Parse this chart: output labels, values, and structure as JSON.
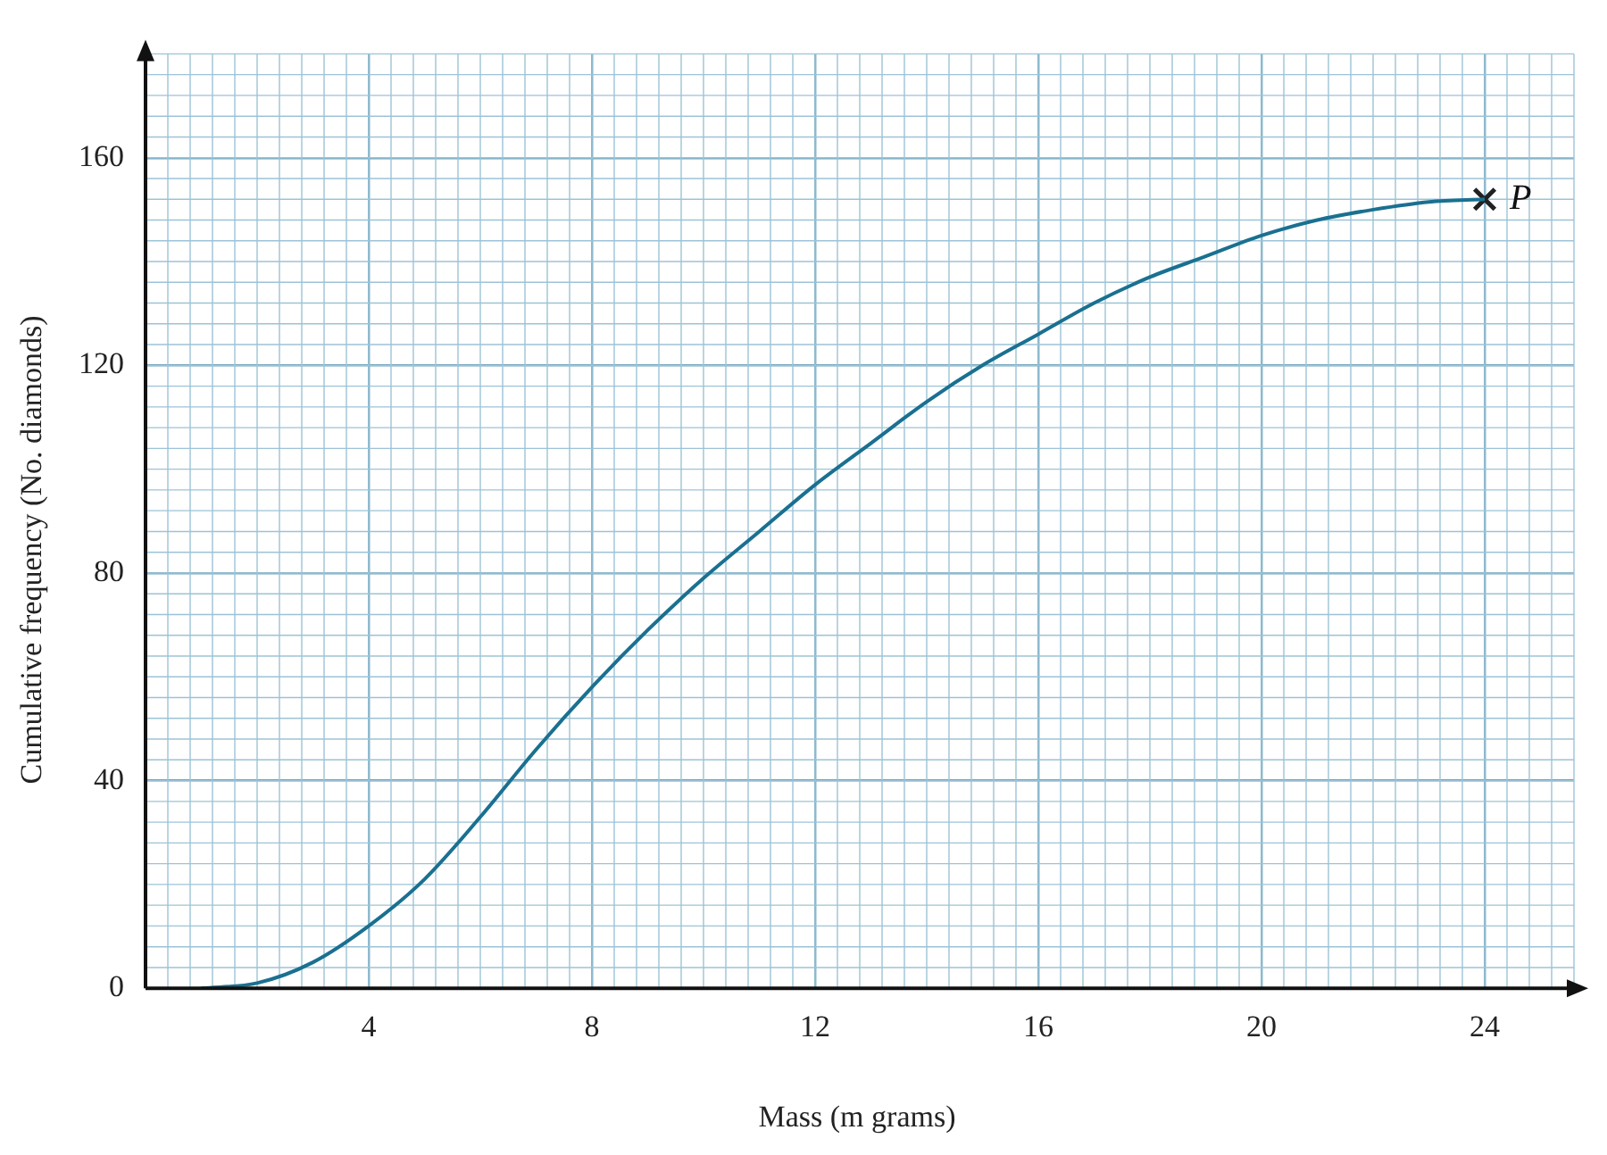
{
  "chart_data": {
    "type": "line",
    "xlabel": "Mass (m grams)",
    "ylabel": "Cumulative frequency (No. diamonds)",
    "xlim": [
      0,
      25.6
    ],
    "ylim": [
      0,
      180
    ],
    "xticks": [
      4,
      8,
      12,
      16,
      20,
      24
    ],
    "yticks": [
      0,
      40,
      80,
      120,
      160
    ],
    "grid": true,
    "legend": false,
    "series": [
      {
        "color": "#1a7090",
        "marker": "none",
        "x": [
          1,
          2,
          3,
          4,
          5,
          6,
          7,
          8,
          9,
          10,
          11,
          12,
          13,
          14,
          15,
          16,
          17,
          18,
          19,
          20,
          21,
          22,
          23,
          24
        ],
        "values": [
          0,
          1,
          5,
          12,
          21,
          33,
          46,
          58,
          69,
          79,
          88,
          97,
          105,
          113,
          120,
          126,
          132,
          137,
          141,
          145,
          148,
          150,
          151.5,
          152
        ]
      },
      {
        "type": "scatter",
        "color": "#222222",
        "marker": "cross",
        "x": [
          24
        ],
        "values": [
          152
        ]
      }
    ],
    "annotations": [
      {
        "text": "P",
        "x": 24,
        "y": 152
      }
    ]
  }
}
